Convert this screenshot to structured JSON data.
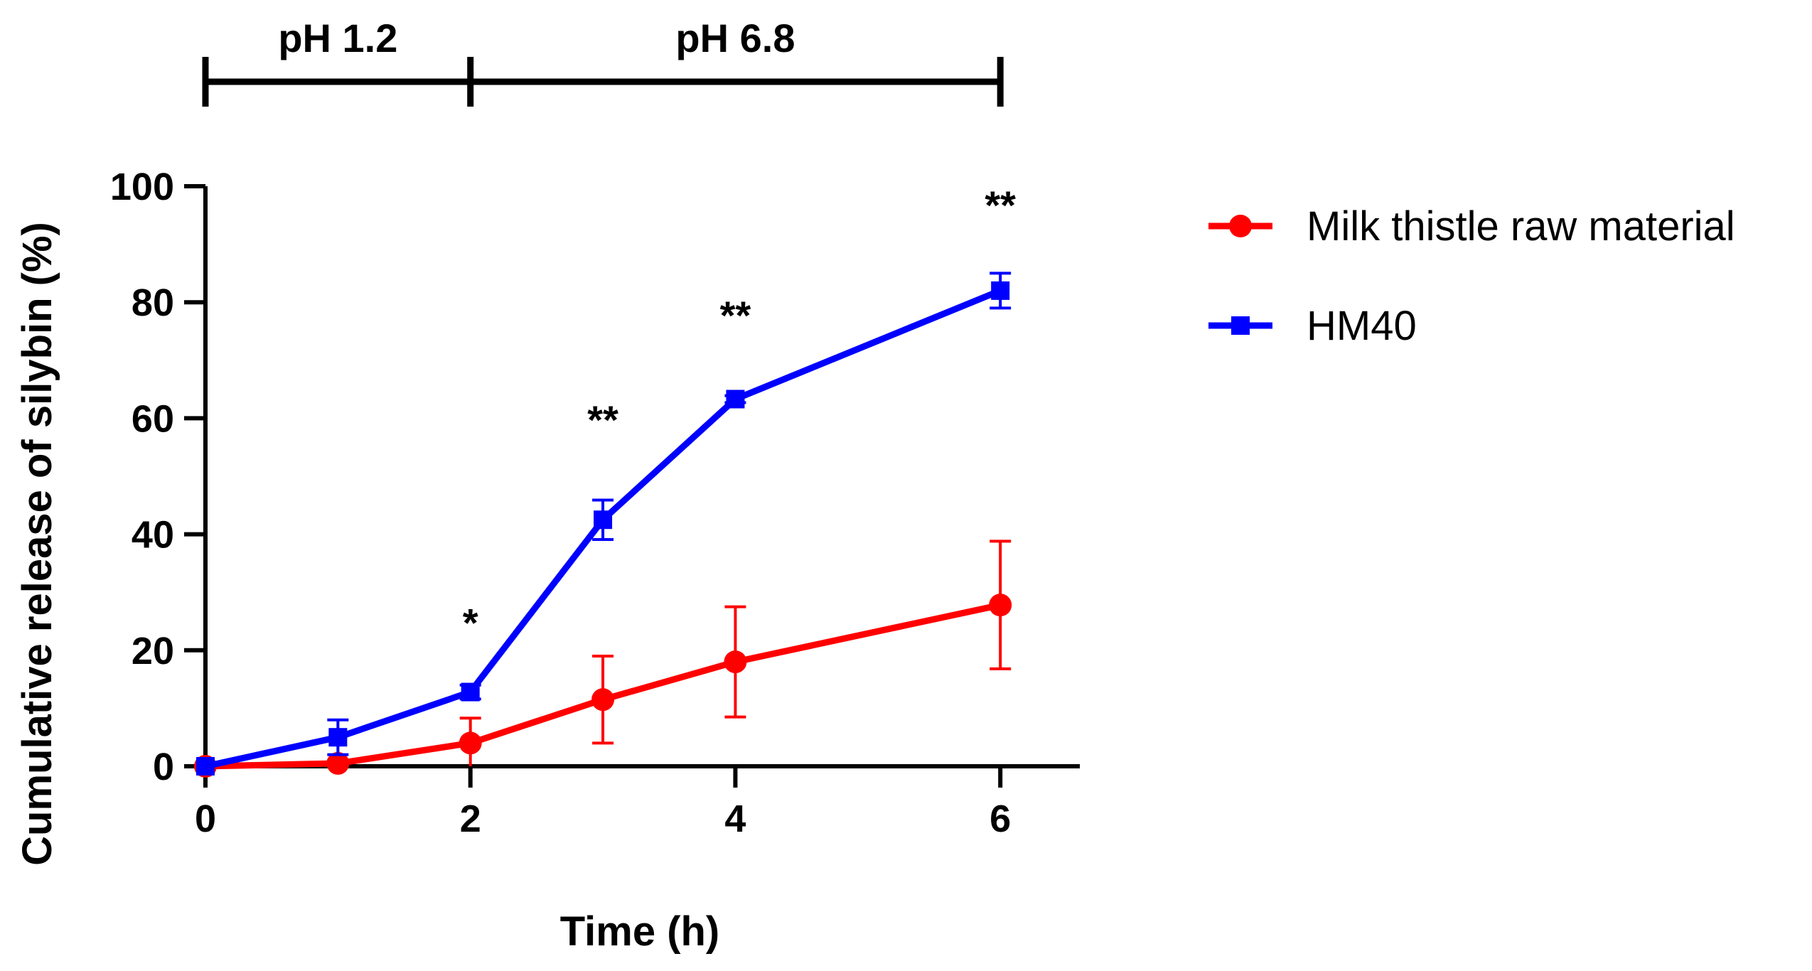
{
  "chart_data": {
    "type": "line",
    "xlabel": "Time (h)",
    "ylabel": "Cumulative release of silybin (%)",
    "xlim": [
      0,
      6.6
    ],
    "ylim": [
      0,
      100
    ],
    "xticks": [
      0,
      2,
      4,
      6
    ],
    "yticks": [
      0,
      20,
      40,
      60,
      80,
      100
    ],
    "grid": false,
    "legend_position": "top-right",
    "x": [
      0,
      1,
      2,
      3,
      4,
      6
    ],
    "series": [
      {
        "name": "Milk thistle raw material",
        "color": "#ff0000",
        "marker": "circle",
        "values": [
          0,
          0.5,
          4.0,
          11.5,
          18.0,
          27.8
        ],
        "errors": [
          0,
          0.5,
          4.3,
          7.5,
          9.5,
          11.0
        ]
      },
      {
        "name": "HM40",
        "color": "#0000ff",
        "marker": "square",
        "values": [
          0,
          5.0,
          12.8,
          42.5,
          63.3,
          82.0
        ],
        "errors": [
          0,
          3.0,
          1.2,
          3.4,
          0.6,
          3.0
        ]
      }
    ],
    "significance": [
      {
        "x": 2,
        "y": 27,
        "label": "*"
      },
      {
        "x": 3,
        "y": 62,
        "label": "**"
      },
      {
        "x": 4,
        "y": 80,
        "label": "**"
      },
      {
        "x": 6,
        "y": 99,
        "label": "**"
      }
    ],
    "phase_bar": [
      {
        "label": "pH 1.2",
        "start": 0,
        "end": 2
      },
      {
        "label": "pH 6.8",
        "start": 2,
        "end": 6
      }
    ]
  }
}
